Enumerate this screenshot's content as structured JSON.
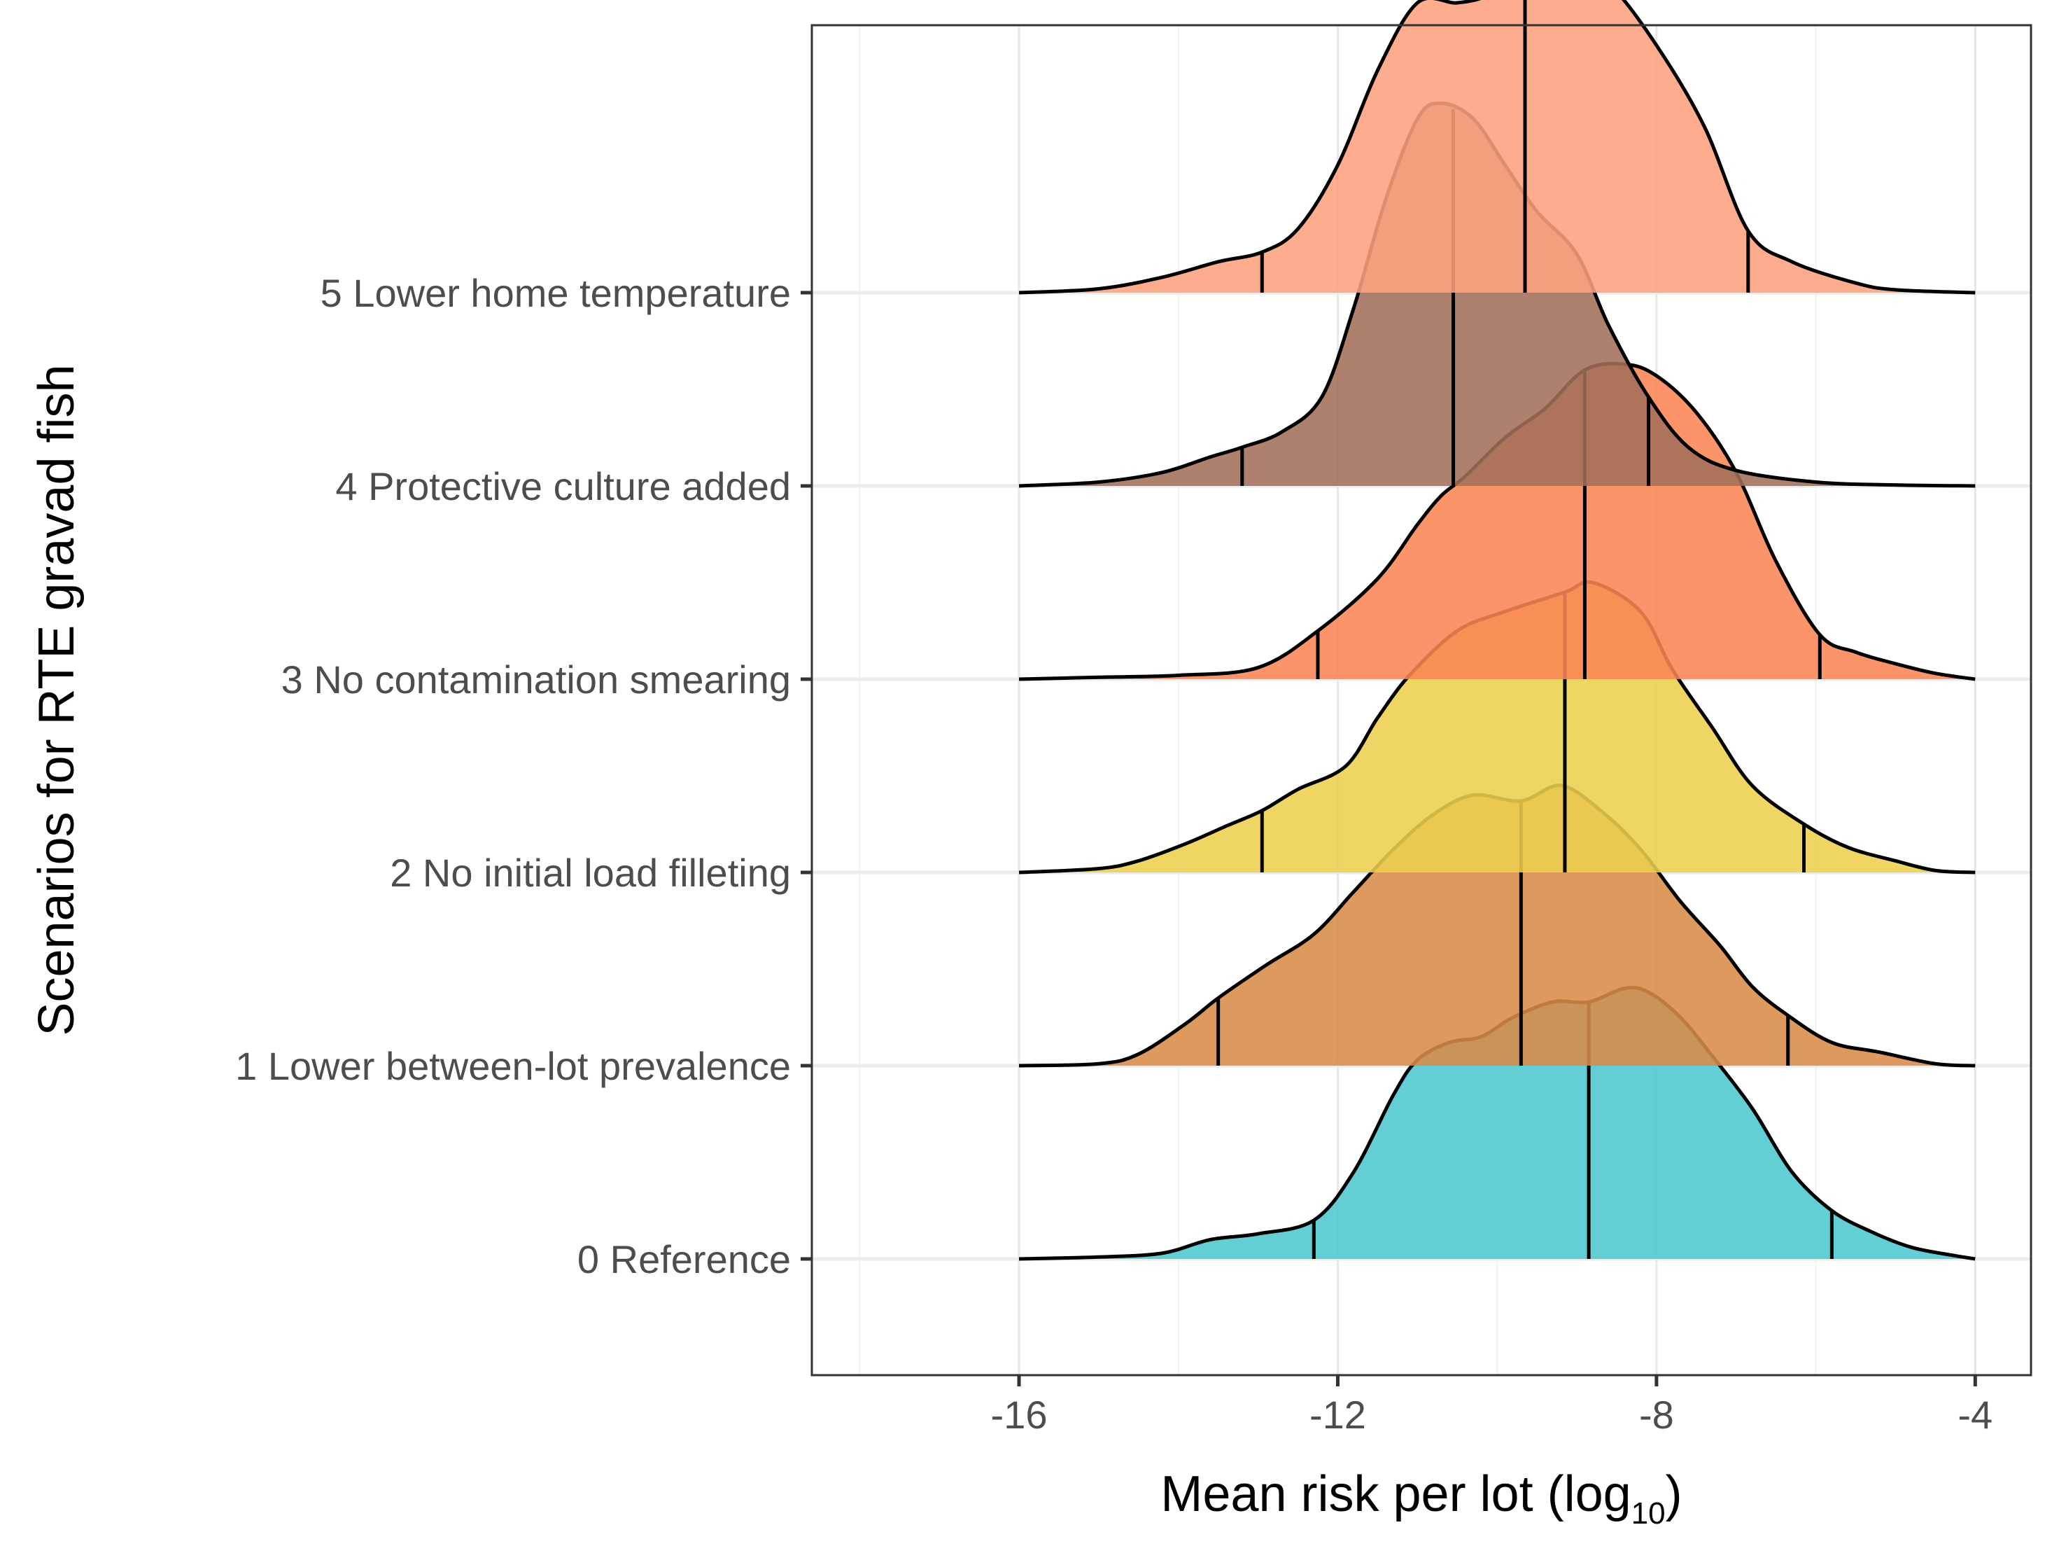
{
  "chart_data": {
    "type": "ridgeline",
    "title": "",
    "xlabel": "Mean risk per lot (log",
    "xlabel_subscript": "10",
    "xlabel_close": ")",
    "ylabel": "Scenarios for RTE gravad fish",
    "xlim": [
      -18.6,
      -3.3
    ],
    "x_ticks": [
      -16,
      -12,
      -8,
      -4
    ],
    "x_tick_labels": [
      "-16",
      "-12",
      "-8",
      "-4"
    ],
    "x_minor_ticks": [
      -18,
      -14,
      -10,
      -6
    ],
    "grid": true,
    "ridge_scale_note": "density height in units of row spacing",
    "series": [
      {
        "name": "0 Reference",
        "color": "#4DC7CE",
        "quantiles": [
          -12.3,
          -8.85,
          -5.8
        ],
        "density": [
          [
            -16,
            0
          ],
          [
            -15.0,
            0.01
          ],
          [
            -14.2,
            0.03
          ],
          [
            -13.6,
            0.1
          ],
          [
            -13.0,
            0.13
          ],
          [
            -12.3,
            0.2
          ],
          [
            -11.8,
            0.45
          ],
          [
            -11.3,
            0.85
          ],
          [
            -11.0,
            1.03
          ],
          [
            -10.6,
            1.12
          ],
          [
            -10.2,
            1.15
          ],
          [
            -9.8,
            1.25
          ],
          [
            -9.3,
            1.33
          ],
          [
            -8.85,
            1.33
          ],
          [
            -8.4,
            1.4
          ],
          [
            -8.1,
            1.38
          ],
          [
            -7.7,
            1.25
          ],
          [
            -7.3,
            1.05
          ],
          [
            -6.8,
            0.78
          ],
          [
            -6.3,
            0.45
          ],
          [
            -5.8,
            0.25
          ],
          [
            -5.3,
            0.14
          ],
          [
            -4.8,
            0.06
          ],
          [
            -4.3,
            0.02
          ],
          [
            -4,
            0
          ]
        ]
      },
      {
        "name": "1 Lower between-lot prevalence",
        "color": "#D88B48",
        "quantiles": [
          -13.5,
          -9.7,
          -6.35
        ],
        "density": [
          [
            -16,
            0
          ],
          [
            -15.0,
            0.01
          ],
          [
            -14.5,
            0.06
          ],
          [
            -13.9,
            0.22
          ],
          [
            -13.5,
            0.35
          ],
          [
            -12.9,
            0.52
          ],
          [
            -12.3,
            0.68
          ],
          [
            -11.8,
            0.9
          ],
          [
            -11.3,
            1.12
          ],
          [
            -10.8,
            1.3
          ],
          [
            -10.3,
            1.4
          ],
          [
            -9.7,
            1.37
          ],
          [
            -9.2,
            1.45
          ],
          [
            -8.7,
            1.32
          ],
          [
            -8.2,
            1.12
          ],
          [
            -7.7,
            0.85
          ],
          [
            -7.2,
            0.62
          ],
          [
            -6.8,
            0.41
          ],
          [
            -6.35,
            0.26
          ],
          [
            -5.8,
            0.12
          ],
          [
            -5.2,
            0.07
          ],
          [
            -4.5,
            0.01
          ],
          [
            -4,
            0
          ]
        ]
      },
      {
        "name": "2 No initial load filleting",
        "color": "#EDCF4F",
        "quantiles": [
          -12.95,
          -9.15,
          -6.15
        ],
        "density": [
          [
            -16,
            0
          ],
          [
            -15.0,
            0.02
          ],
          [
            -14.5,
            0.06
          ],
          [
            -13.9,
            0.15
          ],
          [
            -13.4,
            0.24
          ],
          [
            -12.95,
            0.32
          ],
          [
            -12.5,
            0.43
          ],
          [
            -11.9,
            0.55
          ],
          [
            -11.5,
            0.8
          ],
          [
            -11.1,
            1.02
          ],
          [
            -10.5,
            1.25
          ],
          [
            -9.9,
            1.35
          ],
          [
            -9.15,
            1.45
          ],
          [
            -8.8,
            1.5
          ],
          [
            -8.2,
            1.35
          ],
          [
            -7.8,
            1.05
          ],
          [
            -7.3,
            0.75
          ],
          [
            -6.8,
            0.45
          ],
          [
            -6.15,
            0.25
          ],
          [
            -5.6,
            0.13
          ],
          [
            -5.0,
            0.06
          ],
          [
            -4.5,
            0.01
          ],
          [
            -4,
            0
          ]
        ]
      },
      {
        "name": "3 No contamination smearing",
        "color": "#FA8553",
        "quantiles": [
          -12.25,
          -8.9,
          -5.95
        ],
        "density": [
          [
            -16,
            0
          ],
          [
            -15.0,
            0.01
          ],
          [
            -14.0,
            0.02
          ],
          [
            -13.0,
            0.06
          ],
          [
            -12.25,
            0.25
          ],
          [
            -11.5,
            0.52
          ],
          [
            -11.0,
            0.8
          ],
          [
            -10.7,
            0.95
          ],
          [
            -10.4,
            1.05
          ],
          [
            -9.9,
            1.25
          ],
          [
            -9.4,
            1.4
          ],
          [
            -8.9,
            1.6
          ],
          [
            -8.4,
            1.63
          ],
          [
            -8.0,
            1.57
          ],
          [
            -7.5,
            1.38
          ],
          [
            -7.0,
            1.07
          ],
          [
            -6.5,
            0.61
          ],
          [
            -5.95,
            0.23
          ],
          [
            -5.5,
            0.14
          ],
          [
            -5.0,
            0.08
          ],
          [
            -4.5,
            0.03
          ],
          [
            -4,
            0
          ]
        ]
      },
      {
        "name": "4 Protective culture added",
        "color": "#A27059",
        "quantiles": [
          -13.2,
          -10.55,
          -8.1
        ],
        "density": [
          [
            -16,
            0
          ],
          [
            -15.0,
            0.02
          ],
          [
            -14.2,
            0.07
          ],
          [
            -13.6,
            0.15
          ],
          [
            -13.2,
            0.2
          ],
          [
            -12.7,
            0.28
          ],
          [
            -12.2,
            0.46
          ],
          [
            -11.8,
            0.92
          ],
          [
            -11.4,
            1.48
          ],
          [
            -11.0,
            1.9
          ],
          [
            -10.7,
            1.98
          ],
          [
            -10.3,
            1.9
          ],
          [
            -9.9,
            1.66
          ],
          [
            -9.5,
            1.42
          ],
          [
            -9.0,
            1.2
          ],
          [
            -8.6,
            0.83
          ],
          [
            -8.1,
            0.46
          ],
          [
            -7.6,
            0.2
          ],
          [
            -7.0,
            0.08
          ],
          [
            -6.0,
            0.02
          ],
          [
            -5.0,
            0.005
          ],
          [
            -4,
            0
          ]
        ]
      },
      {
        "name": "5 Lower home temperature",
        "color": "#FDA27E",
        "quantiles": [
          -12.95,
          -9.65,
          -6.85
        ],
        "density": [
          [
            -16,
            0
          ],
          [
            -15.0,
            0.02
          ],
          [
            -14.2,
            0.08
          ],
          [
            -13.5,
            0.16
          ],
          [
            -12.95,
            0.21
          ],
          [
            -12.5,
            0.33
          ],
          [
            -12.0,
            0.66
          ],
          [
            -11.5,
            1.15
          ],
          [
            -11.0,
            1.5
          ],
          [
            -10.5,
            1.5
          ],
          [
            -10.1,
            1.54
          ],
          [
            -9.65,
            1.66
          ],
          [
            -9.1,
            1.7
          ],
          [
            -8.6,
            1.6
          ],
          [
            -8.0,
            1.28
          ],
          [
            -7.4,
            0.86
          ],
          [
            -6.85,
            0.32
          ],
          [
            -6.3,
            0.16
          ],
          [
            -5.5,
            0.05
          ],
          [
            -5.0,
            0.015
          ],
          [
            -4,
            0
          ]
        ]
      }
    ]
  }
}
